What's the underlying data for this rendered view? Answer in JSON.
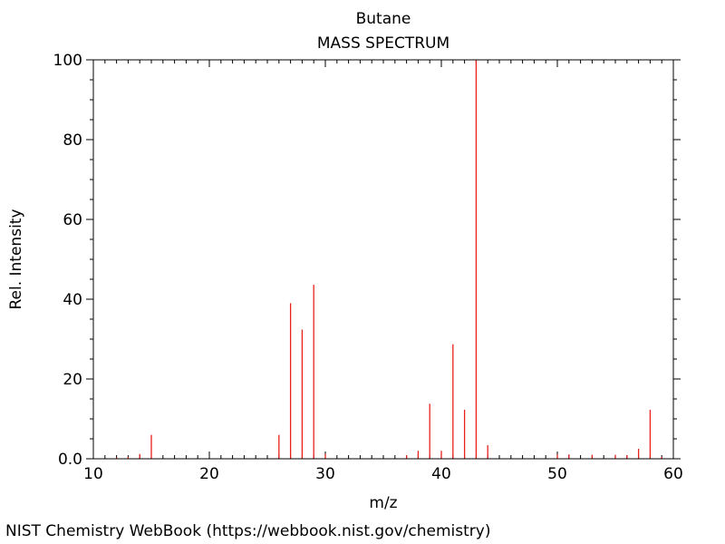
{
  "chart_data": {
    "type": "bar",
    "title": "Butane",
    "subtitle": "MASS SPECTRUM",
    "xlabel": "m/z",
    "ylabel": "Rel. Intensity",
    "xlim": [
      10,
      60
    ],
    "ylim": [
      0,
      100
    ],
    "x_ticks": [
      "10",
      "20",
      "30",
      "40",
      "50",
      "60"
    ],
    "y_ticks": [
      "0.0",
      "20",
      "40",
      "60",
      "80",
      "100"
    ],
    "grid": false,
    "bar_color": "#e8201a",
    "series": [
      {
        "x": [
          12,
          13,
          14,
          15,
          26,
          27,
          28,
          29,
          30,
          37,
          38,
          39,
          40,
          41,
          42,
          43,
          44,
          50,
          51,
          53,
          55,
          56,
          57,
          58,
          59
        ],
        "values": [
          0.3,
          0.5,
          1.2,
          6.0,
          6.0,
          39.0,
          32.4,
          43.6,
          1.2,
          0.9,
          2.0,
          13.8,
          2.0,
          28.7,
          12.3,
          100.0,
          3.4,
          1.1,
          1.1,
          1.0,
          1.0,
          0.9,
          2.5,
          12.3,
          0.5
        ]
      }
    ]
  },
  "footer": "NIST Chemistry WebBook (https://webbook.nist.gov/chemistry)"
}
